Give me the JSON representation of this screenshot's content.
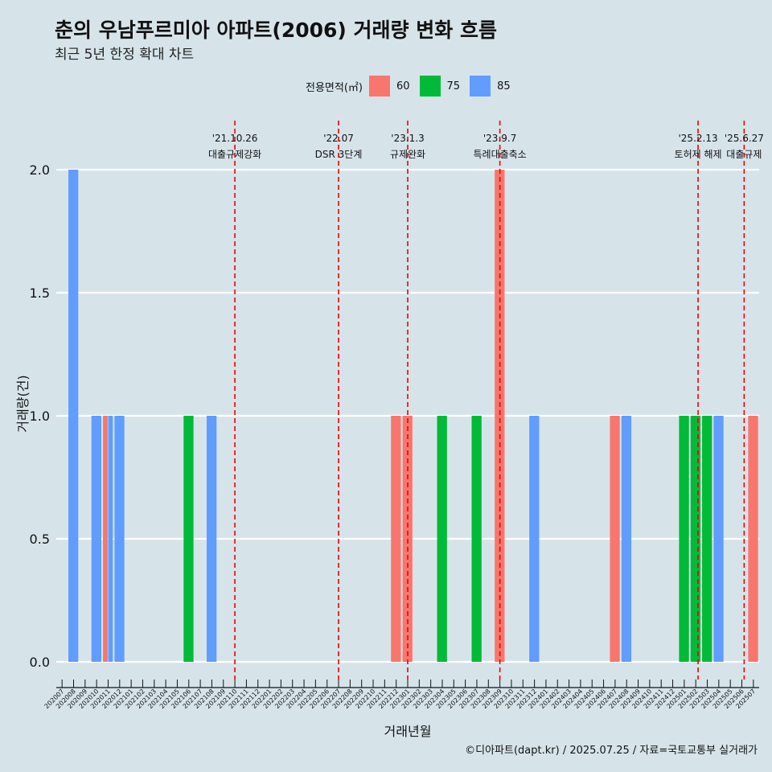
{
  "title": "춘의 우남푸르미아 아파트(2006) 거래량 변화 흐름",
  "subtitle": "최근 5년 한정 확대 차트",
  "caption": "©디아파트(dapt.kr) / 2025.07.25 / 자료=국토교통부 실거래가",
  "legend": {
    "title": "전용면적(㎡)",
    "items": [
      {
        "label": "60",
        "color": "#f8766d"
      },
      {
        "label": "75",
        "color": "#00ba38"
      },
      {
        "label": "85",
        "color": "#619cff"
      }
    ]
  },
  "chart_data": {
    "type": "bar",
    "xlabel": "거래년월",
    "ylabel": "거래량(건)",
    "ylim": [
      0,
      2
    ],
    "yticks": [
      "0.0",
      "0.5",
      "1.0",
      "1.5",
      "2.0"
    ],
    "grid": true,
    "legend_position": "top",
    "categories": [
      "202007",
      "202008",
      "202009",
      "202010",
      "202011",
      "202012",
      "202101",
      "202102",
      "202103",
      "202104",
      "202105",
      "202106",
      "202107",
      "202108",
      "202109",
      "202110",
      "202111",
      "202112",
      "202201",
      "202202",
      "202203",
      "202204",
      "202205",
      "202206",
      "202207",
      "202208",
      "202209",
      "202210",
      "202211",
      "202212",
      "202301",
      "202302",
      "202303",
      "202304",
      "202305",
      "202306",
      "202307",
      "202308",
      "202309",
      "202310",
      "202311",
      "202312",
      "202401",
      "202402",
      "202403",
      "202404",
      "202405",
      "202406",
      "202407",
      "202408",
      "202409",
      "202410",
      "202411",
      "202412",
      "202501",
      "202502",
      "202503",
      "202504",
      "202505",
      "202506",
      "202507"
    ],
    "bars": [
      {
        "month": "202008",
        "area": "85",
        "value": 2
      },
      {
        "month": "202010",
        "area": "85",
        "value": 1
      },
      {
        "month": "202011",
        "area": "60",
        "value": 1
      },
      {
        "month": "202011",
        "area": "85",
        "value": 1
      },
      {
        "month": "202012",
        "area": "85",
        "value": 1
      },
      {
        "month": "202106",
        "area": "75",
        "value": 1
      },
      {
        "month": "202108",
        "area": "85",
        "value": 1
      },
      {
        "month": "202212",
        "area": "60",
        "value": 1
      },
      {
        "month": "202301",
        "area": "60",
        "value": 1
      },
      {
        "month": "202304",
        "area": "75",
        "value": 1
      },
      {
        "month": "202307",
        "area": "75",
        "value": 1
      },
      {
        "month": "202309",
        "area": "60",
        "value": 2
      },
      {
        "month": "202312",
        "area": "85",
        "value": 1
      },
      {
        "month": "202407",
        "area": "60",
        "value": 1
      },
      {
        "month": "202408",
        "area": "85",
        "value": 1
      },
      {
        "month": "202501",
        "area": "75",
        "value": 1
      },
      {
        "month": "202502",
        "area": "75",
        "value": 1
      },
      {
        "month": "202503",
        "area": "75",
        "value": 1
      },
      {
        "month": "202504",
        "area": "85",
        "value": 1
      },
      {
        "month": "202507",
        "area": "60",
        "value": 1
      }
    ],
    "annotations": [
      {
        "month": "202110",
        "offset": 0.0,
        "date": "'21.10.26",
        "label": "대출규제강화"
      },
      {
        "month": "202207",
        "offset": 0.0,
        "date": "'22.07",
        "label": "DSR 3단계"
      },
      {
        "month": "202301",
        "offset": 0.0,
        "date": "'23.1.3",
        "label": "규제완화"
      },
      {
        "month": "202309",
        "offset": 0.0,
        "date": "'23.9.7",
        "label": "특례대출축소"
      },
      {
        "month": "202502",
        "offset": 0.2,
        "date": "'25.2.13",
        "label": "토허제 해제"
      },
      {
        "month": "202506",
        "offset": 0.2,
        "date": "'25.6.27",
        "label": "대출규제"
      }
    ]
  }
}
